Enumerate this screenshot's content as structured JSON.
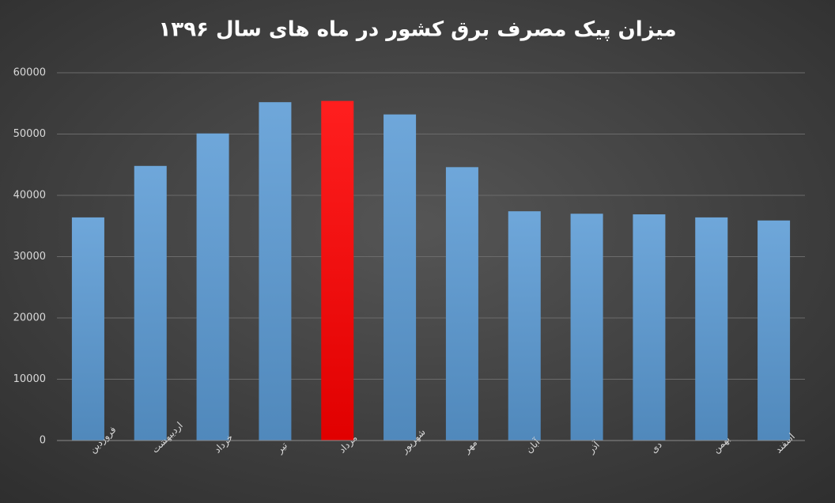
{
  "chart_data": {
    "type": "bar",
    "title": "میزان پیک مصرف برق کشور در ماه های سال ۱۳۹۶",
    "categories": [
      "فروردین",
      "اردیبهشت",
      "خرداد",
      "تیر",
      "مرداد",
      "شهریور",
      "مهر",
      "آبان",
      "آذر",
      "دی",
      "بهمن",
      "اسفند"
    ],
    "values": [
      36400,
      44800,
      50100,
      55200,
      55400,
      53200,
      44600,
      37400,
      37000,
      36900,
      36400,
      35900
    ],
    "colors": [
      "#5b9bd5",
      "#5b9bd5",
      "#5b9bd5",
      "#5b9bd5",
      "#ff0000",
      "#5b9bd5",
      "#5b9bd5",
      "#5b9bd5",
      "#5b9bd5",
      "#5b9bd5",
      "#5b9bd5",
      "#5b9bd5"
    ],
    "ylim": [
      0,
      60000
    ],
    "yticks": [
      0,
      10000,
      20000,
      30000,
      40000,
      50000,
      60000
    ],
    "grid": true
  }
}
